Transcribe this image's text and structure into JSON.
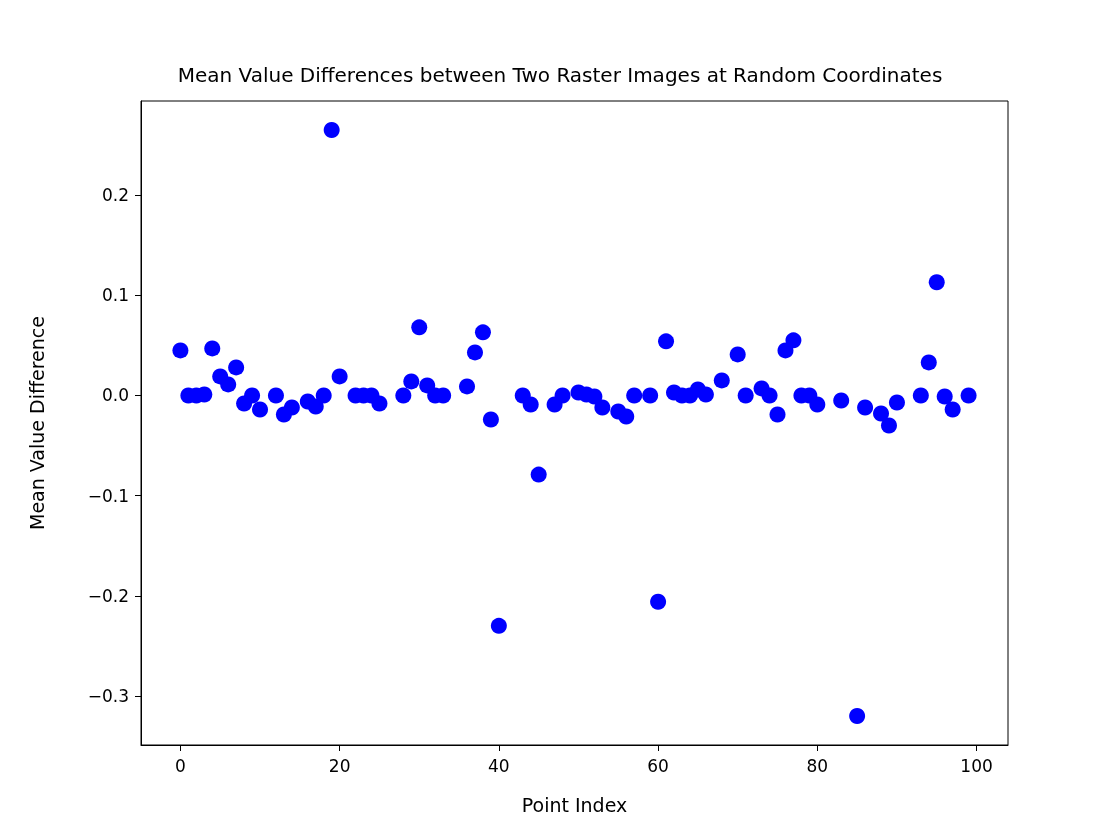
{
  "chart_data": {
    "type": "scatter",
    "title": "Mean Value Differences between Two Raster Images at Random Coordinates",
    "xlabel": "Point Index",
    "ylabel": "Mean Value Difference",
    "x": [
      0,
      1,
      2,
      3,
      4,
      5,
      6,
      7,
      8,
      9,
      10,
      12,
      13,
      14,
      16,
      17,
      18,
      19,
      20,
      22,
      23,
      24,
      25,
      28,
      29,
      30,
      31,
      32,
      33,
      36,
      37,
      38,
      39,
      40,
      43,
      44,
      45,
      47,
      48,
      50,
      51,
      52,
      53,
      55,
      56,
      57,
      59,
      60,
      61,
      62,
      63,
      64,
      65,
      66,
      68,
      70,
      71,
      73,
      74,
      75,
      76,
      77,
      78,
      79,
      80,
      83,
      85,
      86,
      88,
      89,
      90,
      93,
      94,
      95,
      96,
      97,
      99
    ],
    "series": [
      {
        "color": "#0000ff",
        "values": [
          0.045,
          0,
          0,
          0.001,
          0.047,
          0.019,
          0.011,
          0.028,
          -0.008,
          0,
          -0.014,
          0,
          -0.019,
          -0.012,
          -0.006,
          -0.011,
          0,
          0.265,
          0.019,
          0,
          0,
          0,
          -0.008,
          0,
          0.014,
          0.068,
          0.01,
          0,
          0,
          0.009,
          0.043,
          0.063,
          -0.024,
          -0.23,
          0,
          -0.009,
          -0.079,
          -0.009,
          0,
          0.003,
          0.001,
          -0.001,
          -0.012,
          -0.016,
          -0.021,
          0,
          0,
          -0.206,
          0.054,
          0.003,
          0,
          0,
          0.006,
          0.001,
          0.015,
          0.041,
          0,
          0.007,
          0,
          -0.019,
          0.045,
          0.055,
          0,
          0,
          -0.009,
          -0.005,
          -0.32,
          -0.012,
          -0.018,
          -0.03,
          -0.007,
          0,
          0.033,
          0.113,
          -0.001,
          -0.014,
          0
        ]
      }
    ],
    "xlim": [
      -4.95,
      103.95
    ],
    "ylim": [
      -0.349,
      0.294
    ],
    "xticks": [
      0,
      20,
      40,
      60,
      80,
      100
    ],
    "yticks": [
      {
        "value": -0.3,
        "label": "−0.3"
      },
      {
        "value": -0.2,
        "label": "−0.2"
      },
      {
        "value": -0.1,
        "label": "−0.1"
      },
      {
        "value": 0,
        "label": "0.0"
      },
      0.1,
      0.2
    ],
    "marker": "circle",
    "grid": false
  }
}
